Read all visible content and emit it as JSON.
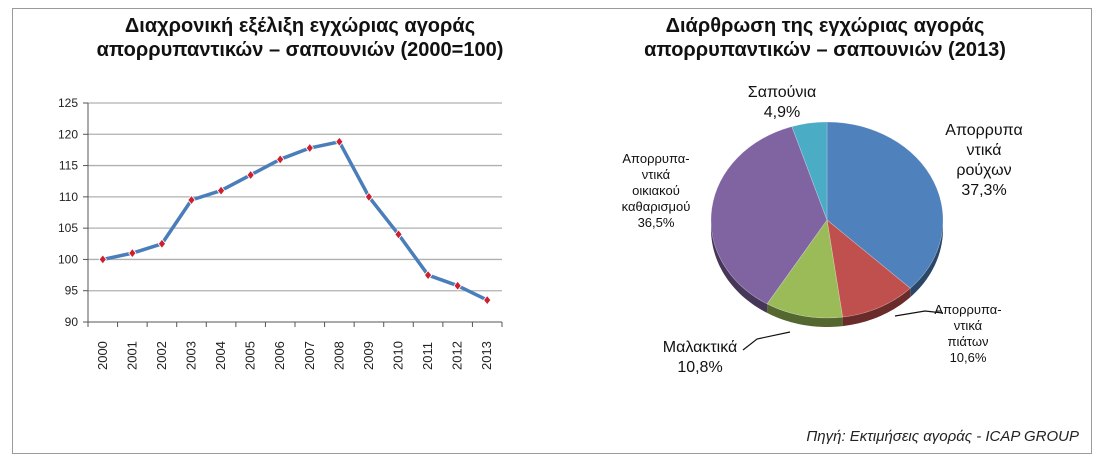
{
  "source": "Πηγή: Εκτιμήσεις αγοράς - ICAP GROUP",
  "colors": {
    "line": "#4a7ebb",
    "marker": "#cc1f2f",
    "grid": "#b0b0b0",
    "pie": [
      "#4f81bd",
      "#c0504d",
      "#9bbb59",
      "#8064a2",
      "#4bacc6"
    ]
  },
  "chart_data": [
    {
      "type": "line",
      "title": [
        "Διαχρονική εξέλιξη εγχώριας αγοράς",
        "απορρυπαντικών – σαπουνιών (2000=100)"
      ],
      "x": [
        "2000",
        "2001",
        "2002",
        "2003",
        "2004",
        "2005",
        "2006",
        "2007",
        "2008",
        "2009",
        "2010",
        "2011",
        "2012",
        "2013"
      ],
      "series": [
        {
          "values": [
            100,
            101,
            102.5,
            109.5,
            111,
            113.5,
            116,
            117.8,
            118.8,
            110,
            104,
            97.5,
            95.8,
            93.5
          ]
        }
      ],
      "yticks": [
        90,
        95,
        100,
        105,
        110,
        115,
        120,
        125
      ],
      "ylim": [
        90,
        125
      ],
      "grid": true
    },
    {
      "type": "pie",
      "title": [
        "Διάρθρωση της εγχώριας αγοράς",
        "απορρυπαντικών – σαπουνιών (2013)"
      ],
      "slices": [
        {
          "label": [
            "Απορρυπα",
            "ντικά",
            "ρούχων"
          ],
          "value": 37.3,
          "value_label": "37,3%"
        },
        {
          "label": [
            "Απορρυπα-",
            "ντικά",
            "πιάτων"
          ],
          "value": 10.6,
          "value_label": "10,6%"
        },
        {
          "label": [
            "Μαλακτικά"
          ],
          "value": 10.8,
          "value_label": "10,8%"
        },
        {
          "label": [
            "Απορρυπα-",
            "ντικά",
            "οικιακού",
            "καθαρισμού"
          ],
          "value": 36.5,
          "value_label": "36,5%"
        },
        {
          "label": [
            "Σαπούνια"
          ],
          "value": 4.9,
          "value_label": "4,9%"
        }
      ]
    }
  ]
}
